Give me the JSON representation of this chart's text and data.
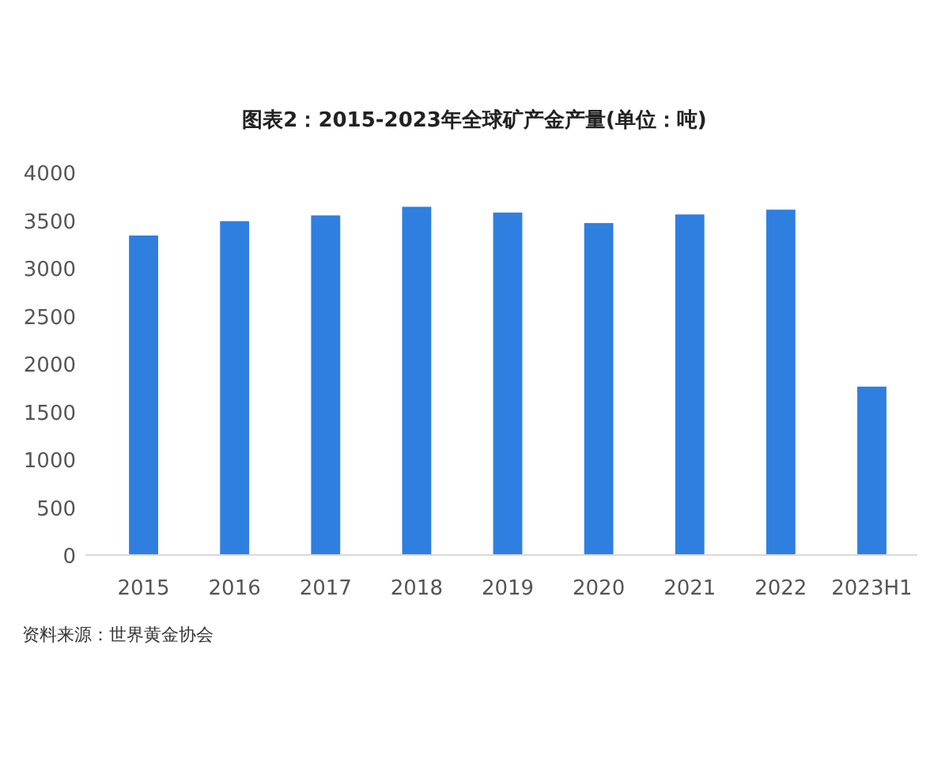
{
  "chart_data": {
    "type": "bar",
    "title": "图表2：2015-2023年全球矿产金产量(单位：吨)",
    "categories": [
      "2015",
      "2016",
      "2017",
      "2018",
      "2019",
      "2020",
      "2021",
      "2022",
      "2023H1"
    ],
    "values": [
      3340,
      3490,
      3550,
      3640,
      3580,
      3470,
      3560,
      3610,
      1760
    ],
    "color": "#2f7fe0",
    "ylim": [
      0,
      4000
    ],
    "yticks": [
      0,
      500,
      1000,
      1500,
      2000,
      2500,
      3000,
      3500,
      4000
    ],
    "annotations": [
      "资料来源：世界黄金协会"
    ]
  }
}
